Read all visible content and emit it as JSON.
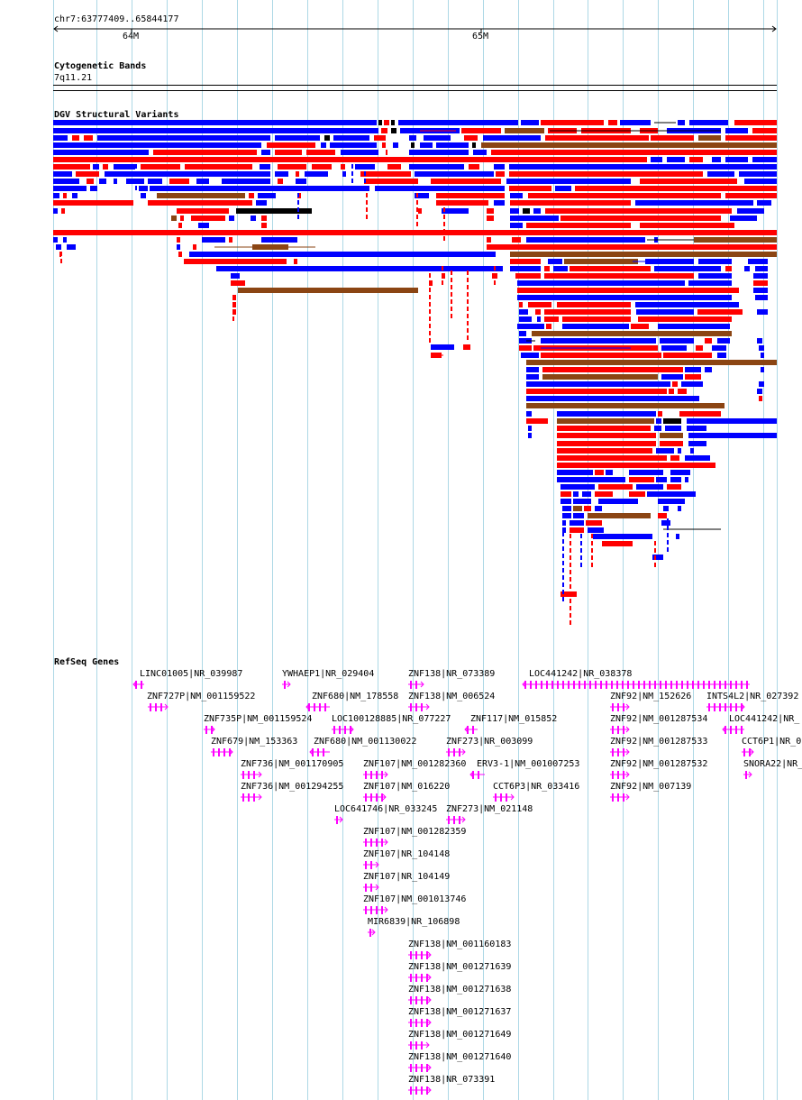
{
  "ruler": {
    "region": "chr7:63777409..65844177",
    "ticks": [
      "64M",
      "65M"
    ]
  },
  "cytoband": {
    "title": "Cytogenetic Bands",
    "band": "7q11.21"
  },
  "dgv": {
    "title": "DGV Structural Variants"
  },
  "refseq": {
    "title": "RefSeq Genes",
    "genes": [
      "LINC01005|NR_039987",
      "YWHAEP1|NR_029404",
      "ZNF138|NR_073389",
      "LOC441242|NR_038378",
      "ZNF727P|NM_001159522",
      "ZNF680|NM_178558",
      "ZNF138|NM_006524",
      "ZNF92|NM_152626",
      "INTS4L2|NR_027392",
      "ZNF735P|NM_001159524",
      "LOC100128885|NR_077227",
      "ZNF117|NM_015852",
      "ZNF92|NM_001287534",
      "LOC441242|NR_",
      "ZNF679|NM_153363",
      "ZNF680|NM_001130022",
      "ZNF273|NR_003099",
      "ZNF92|NM_001287533",
      "CCT6P1|NR_0",
      "ZNF736|NM_001170905",
      "ZNF107|NM_001282360",
      "ERV3-1|NM_001007253",
      "ZNF92|NM_001287532",
      "SNORA22|NR_",
      "ZNF736|NM_001294255",
      "ZNF107|NM_016220",
      "CCT6P3|NR_033416",
      "ZNF92|NM_007139",
      "LOC641746|NR_033245",
      "ZNF273|NM_021148",
      "ZNF107|NM_001282359",
      "ZNF107|NR_104148",
      "ZNF107|NR_104149",
      "ZNF107|NM_001013746",
      "MIR6839|NR_106898",
      "ZNF138|NM_001160183",
      "ZNF138|NM_001271639",
      "ZNF138|NM_001271638",
      "ZNF138|NM_001271637",
      "ZNF138|NM_001271649",
      "ZNF138|NM_001271640",
      "ZNF138|NR_073391"
    ]
  },
  "colors": {
    "gain": "#ff0000",
    "loss": "#0000ff",
    "both": "#8b4513",
    "other": "#000000",
    "gene": "#ff00ff",
    "grid": "#add8e6"
  }
}
